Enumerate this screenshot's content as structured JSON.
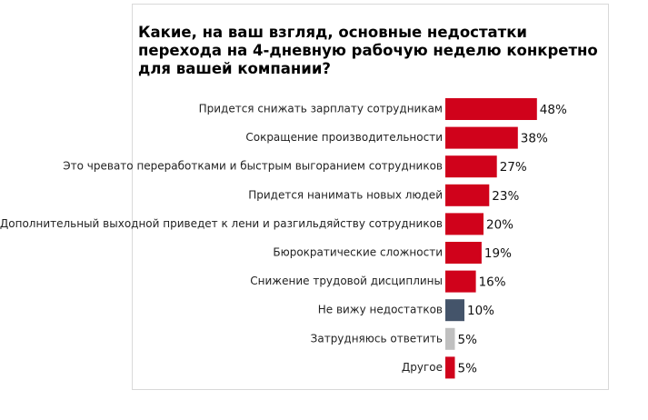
{
  "chart_data": {
    "type": "bar",
    "orientation": "horizontal",
    "title": "Какие, на ваш взгляд, основные недостатки перехода на 4-дневную рабочую неделю конкретно для вашей компании?",
    "categories": [
      "Придется снижать зарплату сотрудникам",
      "Сокращение производительности",
      "Это чревато переработками и быстрым выгоранием сотрудников",
      "Придется нанимать новых людей",
      "Дополнительный выходной приведет к лени и разгильдяйству сотрудников",
      "Бюрократические сложности",
      "Снижение трудовой дисциплины",
      "Не вижу недостатков",
      "Затрудняюсь ответить",
      "Другое"
    ],
    "values": [
      48,
      38,
      27,
      23,
      20,
      19,
      16,
      10,
      5,
      5
    ],
    "value_labels": [
      "48%",
      "38%",
      "27%",
      "23%",
      "20%",
      "19%",
      "16%",
      "10%",
      "5%",
      "5%"
    ],
    "colors": [
      "#d0021b",
      "#d0021b",
      "#d0021b",
      "#d0021b",
      "#d0021b",
      "#d0021b",
      "#d0021b",
      "#44546a",
      "#c0c0c0",
      "#d0021b"
    ]
  }
}
